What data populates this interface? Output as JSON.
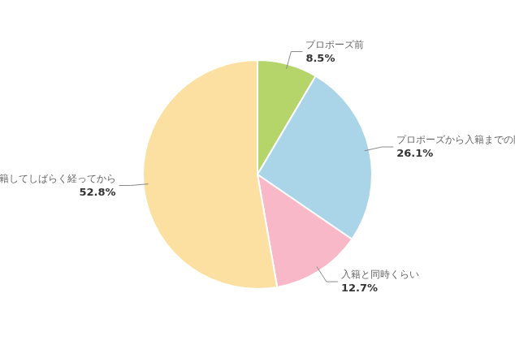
{
  "chart_data": {
    "type": "pie",
    "categories": [
      "プロポーズ前",
      "プロポーズから入籍までの間",
      "入籍と同時くらい",
      "入籍してしばらく経ってから"
    ],
    "values": [
      8.5,
      26.1,
      12.7,
      52.8
    ],
    "value_labels": [
      "8.5%",
      "26.1%",
      "12.7%",
      "52.8%"
    ],
    "colors": [
      "#b5d56a",
      "#aad4e8",
      "#f9b8c8",
      "#fce0a2"
    ],
    "data_labels": true
  }
}
